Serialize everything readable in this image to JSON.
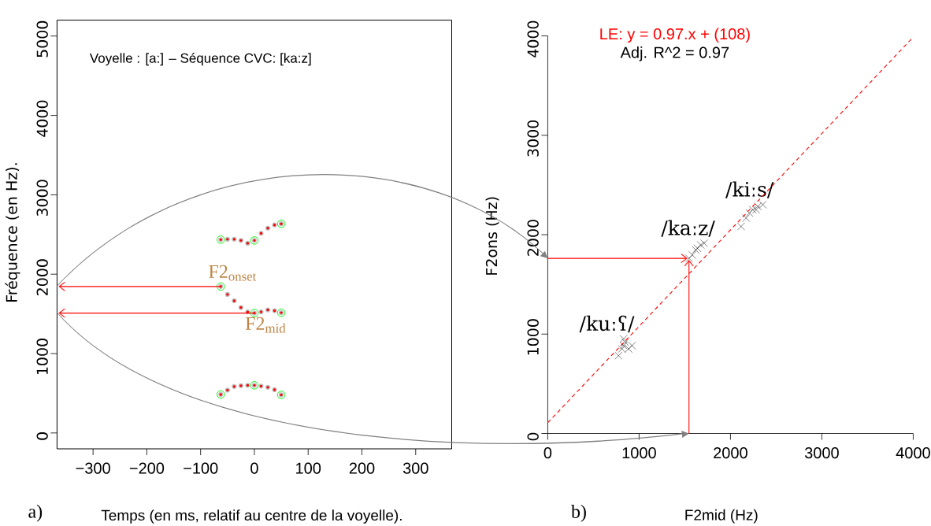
{
  "chart_data": [
    {
      "type": "scatter",
      "title": "Voyelle : [a:] – Séquence CVC: [ka:z]",
      "xlabel": "Temps (en ms, relatif au centre de la voyelle).",
      "ylabel": "Fréquence (en Hz).",
      "x": [
        -62.5,
        -50,
        -37.5,
        -25,
        -12.5,
        0,
        12.5,
        25,
        37.5,
        50
      ],
      "series": [
        {
          "color": "#ff0000",
          "values": [
            2435,
            2440,
            2440,
            2425,
            2390,
            2425,
            2515,
            2580,
            2620,
            2635
          ]
        },
        {
          "color": "#ff0000",
          "values": [
            1845,
            1745,
            1665,
            1580,
            1525,
            1510,
            1525,
            1550,
            1540,
            1515
          ]
        },
        {
          "color": "#ff0000",
          "values": [
            485,
            540,
            585,
            595,
            600,
            600,
            590,
            575,
            545,
            480
          ]
        },
        {
          "color": "#00ee00",
          "marker": "circle",
          "x": [
            -62.5,
            0,
            50,
            -62.5,
            0,
            50,
            -62.5,
            0,
            50
          ],
          "values": [
            2435,
            2425,
            2635,
            1845,
            1510,
            1515,
            485,
            600,
            480
          ]
        }
      ],
      "xlim": [
        -367,
        367
      ],
      "ylim": [
        -200,
        5200
      ],
      "xticks": [
        {
          "value": -300,
          "label": "−300"
        },
        {
          "value": -200,
          "label": "−200"
        },
        {
          "value": -100,
          "label": "−100"
        },
        0,
        100,
        200,
        300
      ],
      "yticks": [
        0,
        1000,
        2000,
        3000,
        4000,
        5000
      ],
      "marker": "circle",
      "grid": false,
      "legend": false,
      "annotations": [
        "a)",
        {
          "text": "F2$_{onset}$",
          "x": -62.5,
          "y": 1845
        },
        {
          "text": "F2$_{mid}$",
          "x": 0,
          "y": 1510
        }
      ]
    },
    {
      "type": "scatter",
      "xlabel": "F2mid (Hz)",
      "ylabel": "F2ons (Hz)",
      "series": [
        {
          "name": "/kuːʕ/",
          "color": "#000000",
          "x": [
            775,
            812,
            830,
            848,
            830,
            885,
            922
          ],
          "values": [
            783,
            851,
            884,
            918,
            952,
            851,
            884
          ]
        },
        {
          "name": "/kaːz/",
          "color": "#000000",
          "x": [
            1546,
            1583,
            1620,
            1638,
            1675,
            1712
          ],
          "values": [
            1762,
            1796,
            1846,
            1863,
            1897,
            1914
          ]
        },
        {
          "name": "/kiːs/",
          "color": "#000000",
          "x": [
            2116,
            2171,
            2208,
            2244,
            2281,
            2299,
            2354
          ],
          "values": [
            2083,
            2167,
            2218,
            2251,
            2251,
            2285,
            2302
          ]
        },
        {
          "type": "line",
          "name": "LE: y = 0.97.x + (108)",
          "color": "#ff0000",
          "marker": "none",
          "line_style": "dashed",
          "x": [
            0,
            4000
          ],
          "values": [
            108,
            3988
          ]
        }
      ],
      "xlim": [
        0,
        4000
      ],
      "ylim": [
        0,
        4000
      ],
      "xticks": [
        0,
        1000,
        2000,
        3000,
        4000
      ],
      "yticks": [
        0,
        1000,
        2000,
        3000,
        4000
      ],
      "marker": "cross",
      "grid": false,
      "legend": false,
      "annotations": [
        "b)",
        "Adj. R^2 = 0.97"
      ]
    }
  ]
}
